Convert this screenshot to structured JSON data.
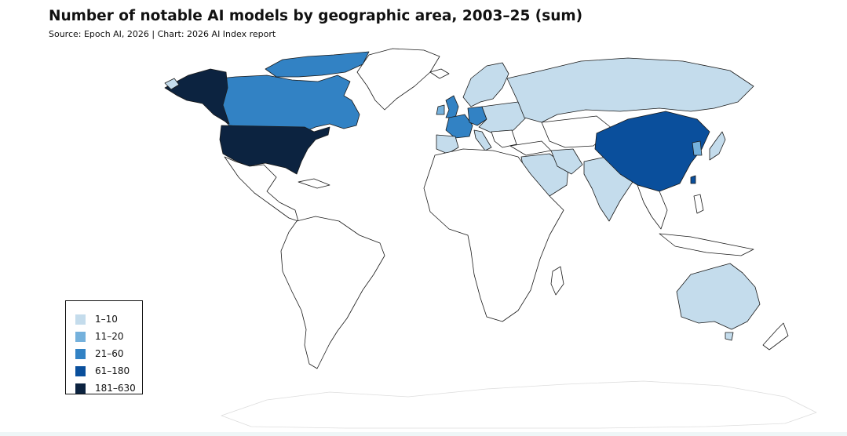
{
  "header": {
    "title": "Number of notable AI models by geographic area, 2003–25 (sum)",
    "source": "Source: Epoch AI, 2026 | Chart: 2026 AI Index report"
  },
  "colors": {
    "bin1": "#c4dcec",
    "bin2": "#75b1dc",
    "bin3": "#3282c4",
    "bin4": "#0a4f9c",
    "bin5": "#0c2340",
    "none": "#ffffff",
    "border": "#1a1a1a"
  },
  "legend": {
    "items": [
      {
        "label": "1–10",
        "color": "#c4dcec"
      },
      {
        "label": "11–20",
        "color": "#75b1dc"
      },
      {
        "label": "21–60",
        "color": "#3282c4"
      },
      {
        "label": "61–180",
        "color": "#0a4f9c"
      },
      {
        "label": "181–630",
        "color": "#0c2340"
      }
    ]
  }
}
